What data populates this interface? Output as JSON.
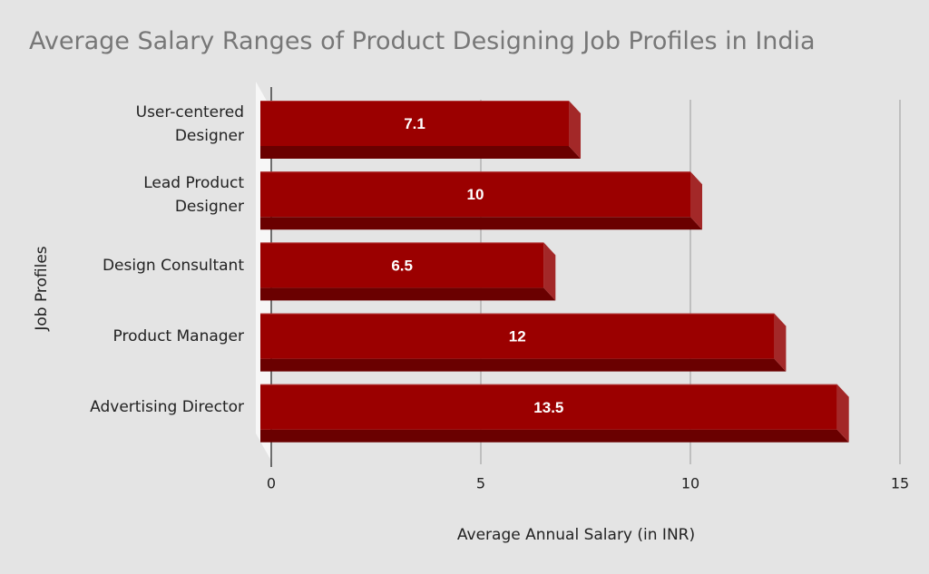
{
  "chart_data": {
    "type": "bar",
    "orientation": "horizontal",
    "title": "Average Salary Ranges of Product Designing Job Profiles in India",
    "xlabel": "Average Annual Salary (in INR)",
    "ylabel": "Job Profiles",
    "categories": [
      [
        "User-centered",
        "Designer"
      ],
      [
        "Lead Product",
        "Designer"
      ],
      [
        "Design Consultant"
      ],
      [
        "Product Manager"
      ],
      [
        "Advertising Director"
      ]
    ],
    "values": [
      7.1,
      10,
      6.5,
      12,
      13.5
    ],
    "value_labels": [
      "7.1",
      "10",
      "6.5",
      "12",
      "13.5"
    ],
    "xlim": [
      0,
      15
    ],
    "xticks": [
      0,
      5,
      10,
      15
    ],
    "grid": "vertical",
    "legend": "none",
    "colors": {
      "bar_front": "#9b0000",
      "bar_top": "#b33a3a",
      "bar_side": "#a32828",
      "bar_bottom": "#6a0000",
      "grid": "#9a9a9a",
      "label": "#ffffff"
    }
  }
}
